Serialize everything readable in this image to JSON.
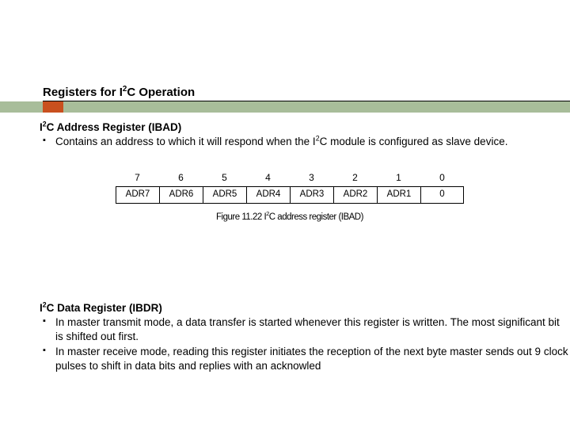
{
  "title": {
    "prefix": "Registers for I",
    "sup": "2",
    "suffix": "C Operation"
  },
  "accent": {
    "bar_color": "#a8bd9a",
    "square_color": "#c9501e"
  },
  "section1": {
    "head_prefix": "I",
    "head_sup": "2",
    "head_suffix": "C Address Register (IBAD)",
    "bullet1_prefix": "Contains an address to which it will respond when the I",
    "bullet1_sup": "2",
    "bullet1_suffix": "C module is configured as slave device."
  },
  "register": {
    "bit_numbers": [
      "7",
      "6",
      "5",
      "4",
      "3",
      "2",
      "1",
      "0"
    ],
    "cells": [
      "ADR7",
      "ADR6",
      "ADR5",
      "ADR4",
      "ADR3",
      "ADR2",
      "ADR1",
      "0"
    ],
    "caption_prefix": "Figure 11.22 I",
    "caption_sup": "2",
    "caption_suffix": "C address register (IBAD)",
    "cell_border": "#000000",
    "font_size_numbers": 12,
    "font_size_cells": 11.5
  },
  "section2": {
    "head_prefix": "I",
    "head_sup": "2",
    "head_suffix": "C Data Register (IBDR)",
    "bullet1": "In master transmit mode, a data transfer is started whenever this register is written. The most significant bit is shifted out first.",
    "bullet2": "In master receive mode, reading this register initiates the reception of the next byte master sends out 9 clock pulses to shift in data bits and replies with an acknowled"
  }
}
